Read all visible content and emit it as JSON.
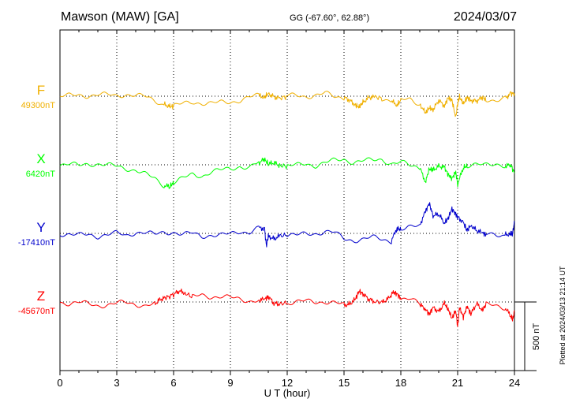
{
  "header": {
    "station": "Mawson (MAW)  [GA]",
    "coords": "GG (-67.60°,  62.88°)",
    "date": "2024/03/07"
  },
  "footer": {
    "plotted": "Plotted at 2024/03/13 21:14 UT"
  },
  "chart_data": {
    "type": "line",
    "title": "Mawson (MAW)  [GA]",
    "subtitle": "GG (-67.60°,  62.88°)",
    "date": "2024/03/07",
    "xlabel": "U T (hour)",
    "xlim": [
      0,
      24
    ],
    "xticks": [
      0,
      3,
      6,
      9,
      12,
      15,
      18,
      21,
      24
    ],
    "xtick_labels": [
      "0",
      "3",
      "6",
      "9",
      "12",
      "15",
      "18",
      "21",
      "24"
    ],
    "grid": true,
    "scale_bar": {
      "value": 500,
      "label": "500 nT"
    },
    "series": [
      {
        "name": "F",
        "baseline": 49300,
        "baseline_label": "49300nT",
        "color": "#f0b000",
        "x": [
          0,
          0.5,
          1,
          1.5,
          2,
          2.5,
          3,
          3.5,
          4,
          4.5,
          5,
          5.5,
          5.8,
          6,
          6.5,
          7,
          7.5,
          8,
          8.5,
          9,
          9.5,
          10,
          10.5,
          10.8,
          11,
          11.3,
          11.6,
          12,
          12.5,
          13,
          13.5,
          14,
          14.5,
          15,
          15.3,
          15.6,
          15.8,
          16,
          16.3,
          16.6,
          17,
          17.5,
          17.8,
          18,
          18.5,
          19,
          19.3,
          19.5,
          19.7,
          20,
          20.3,
          20.5,
          20.7,
          20.9,
          21,
          21.1,
          21.3,
          21.5,
          21.7,
          22,
          22.3,
          22.5,
          23,
          23.5,
          23.8,
          24
        ],
        "values": [
          0,
          2,
          8,
          5,
          12,
          8,
          4,
          15,
          5,
          -5,
          -30,
          -60,
          -75,
          -75,
          -55,
          -40,
          -50,
          -55,
          -45,
          -40,
          -30,
          -10,
          5,
          -10,
          20,
          -5,
          -15,
          0,
          5,
          0,
          8,
          20,
          -5,
          -10,
          -30,
          -65,
          -80,
          -45,
          -10,
          -5,
          -15,
          -35,
          -65,
          -30,
          -20,
          -55,
          -125,
          -85,
          -100,
          -30,
          -70,
          -10,
          -30,
          -155,
          -55,
          -5,
          -55,
          -10,
          -30,
          -35,
          -10,
          -25,
          -25,
          -15,
          20,
          20
        ]
      },
      {
        "name": "X",
        "baseline": 6420,
        "baseline_label": "6420nT",
        "color": "#00ff00",
        "x": [
          0,
          0.5,
          1,
          1.5,
          2,
          2.5,
          3,
          3.5,
          4,
          4.5,
          5,
          5.5,
          5.8,
          6,
          6.5,
          7,
          7.5,
          8,
          8.5,
          9,
          9.5,
          10,
          10.5,
          10.8,
          11,
          11.3,
          11.6,
          12,
          12.5,
          13,
          13.5,
          14,
          14.5,
          15,
          15.5,
          16,
          16.5,
          17,
          17.5,
          18,
          18.5,
          19,
          19.3,
          19.5,
          19.7,
          20,
          20.3,
          20.5,
          20.7,
          20.9,
          21,
          21.3,
          21.5,
          22,
          22.5,
          23,
          23.5,
          23.8,
          24
        ],
        "values": [
          0,
          2,
          -5,
          10,
          5,
          -5,
          -10,
          -25,
          -40,
          -70,
          -100,
          -150,
          -160,
          -130,
          -100,
          -70,
          -80,
          -50,
          -40,
          -30,
          -10,
          -20,
          15,
          40,
          5,
          15,
          -5,
          -10,
          -5,
          10,
          -5,
          15,
          30,
          40,
          20,
          30,
          30,
          40,
          10,
          20,
          -10,
          -20,
          -125,
          -30,
          -40,
          -10,
          -20,
          -70,
          -100,
          -50,
          -140,
          -20,
          -10,
          -5,
          0,
          15,
          -10,
          0,
          -60
        ]
      },
      {
        "name": "Y",
        "baseline": -17410,
        "baseline_label": "-17410nT",
        "color": "#0000cc",
        "x": [
          0,
          0.5,
          1,
          1.5,
          2,
          2.5,
          3,
          3.5,
          4,
          4.5,
          5,
          5.5,
          6,
          6.5,
          7,
          7.5,
          8,
          8.5,
          9,
          9.5,
          10,
          10.5,
          10.8,
          10.9,
          11,
          11.3,
          11.6,
          12,
          12.5,
          13,
          13.5,
          14,
          14.5,
          15,
          15.5,
          16,
          16.5,
          17,
          17.5,
          17.8,
          18,
          18.5,
          19,
          19.3,
          19.5,
          19.7,
          20,
          20.3,
          20.5,
          20.7,
          20.9,
          21,
          21.3,
          21.5,
          21.7,
          22,
          22.3,
          22.5,
          23,
          23.5,
          23.8,
          23.9,
          24
        ],
        "values": [
          0,
          -10,
          -15,
          -5,
          -20,
          -10,
          0,
          -15,
          10,
          5,
          -10,
          10,
          10,
          -10,
          0,
          -20,
          -10,
          -15,
          -5,
          15,
          10,
          40,
          35,
          -90,
          -20,
          -40,
          -20,
          -10,
          -15,
          -5,
          0,
          15,
          5,
          -40,
          -50,
          -40,
          -30,
          -45,
          -55,
          40,
          25,
          40,
          60,
          160,
          220,
          130,
          140,
          75,
          110,
          180,
          140,
          120,
          80,
          20,
          60,
          20,
          5,
          -10,
          -5,
          -10,
          -5,
          -5,
          90
        ]
      },
      {
        "name": "Z",
        "baseline": -45670,
        "baseline_label": "-45670nT",
        "color": "#ff0000",
        "x": [
          0,
          0.5,
          1,
          1.5,
          2,
          2.5,
          3,
          3.5,
          4,
          4.5,
          5,
          5.3,
          5.6,
          6,
          6.3,
          6.6,
          7,
          7.5,
          8,
          8.5,
          9,
          9.5,
          10,
          10.5,
          10.8,
          11,
          11.3,
          11.6,
          12,
          12.5,
          13,
          13.5,
          14,
          14.5,
          15,
          15.3,
          15.6,
          15.8,
          16,
          16.3,
          16.6,
          17,
          17.3,
          17.6,
          17.8,
          18,
          18.5,
          19,
          19.3,
          19.5,
          19.7,
          20,
          20.3,
          20.5,
          20.7,
          20.9,
          21,
          21.1,
          21.3,
          21.5,
          21.7,
          22,
          22.3,
          22.5,
          23,
          23.5,
          23.8,
          23.9,
          24
        ],
        "values": [
          0,
          -10,
          -5,
          -15,
          -25,
          -20,
          -10,
          -5,
          -15,
          -25,
          -15,
          20,
          30,
          55,
          80,
          65,
          35,
          50,
          40,
          40,
          30,
          20,
          10,
          15,
          20,
          40,
          -10,
          -15,
          -5,
          0,
          5,
          0,
          5,
          -5,
          -25,
          -15,
          20,
          80,
          60,
          20,
          5,
          -5,
          20,
          70,
          60,
          25,
          20,
          -20,
          -50,
          -90,
          -40,
          -70,
          -10,
          -55,
          -120,
          -60,
          -180,
          -40,
          -110,
          -30,
          -90,
          -10,
          -60,
          -20,
          -30,
          -40,
          -100,
          -130,
          -70
        ]
      }
    ]
  }
}
